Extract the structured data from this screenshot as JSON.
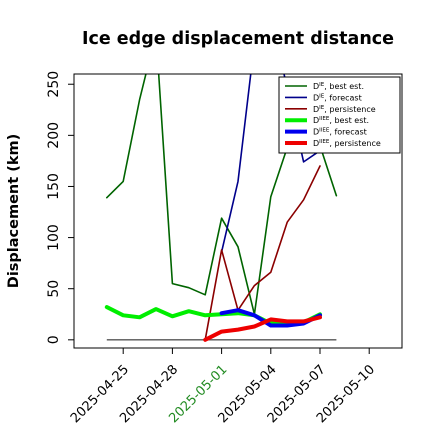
{
  "chart_data": {
    "type": "line",
    "title": "Ice edge displacement distance",
    "ylabel": "Displacement (km)",
    "xlabel": "",
    "xlim": [
      "2025-04-22",
      "2025-05-12"
    ],
    "ylim": [
      -8,
      260
    ],
    "x_ticks": [
      {
        "date": "2025-04-25",
        "label": "2025-04-25",
        "color": "#000000"
      },
      {
        "date": "2025-04-28",
        "label": "2025-04-28",
        "color": "#000000"
      },
      {
        "date": "2025-05-01",
        "label": "2025-05-01",
        "color": "#228b22"
      },
      {
        "date": "2025-05-04",
        "label": "2025-05-04",
        "color": "#000000"
      },
      {
        "date": "2025-05-07",
        "label": "2025-05-07",
        "color": "#000000"
      },
      {
        "date": "2025-05-10",
        "label": "2025-05-10",
        "color": "#000000"
      }
    ],
    "y_ticks": [
      0,
      50,
      100,
      150,
      200,
      250
    ],
    "zero_line": {
      "from": "2025-04-24",
      "to": "2025-05-08",
      "value": 0,
      "color": "#555555"
    },
    "legend_position": "top-right",
    "series": [
      {
        "name": "D^IE, best est.",
        "sup": "IE",
        "rest": ", best est.",
        "color": "#006400",
        "width": 1.6,
        "points": [
          [
            "2025-04-24",
            139
          ],
          [
            "2025-04-25",
            155
          ],
          [
            "2025-04-26",
            235
          ],
          [
            "2025-04-27",
            300
          ],
          [
            "2025-04-28",
            55
          ],
          [
            "2025-04-29",
            51
          ],
          [
            "2025-04-30",
            44
          ],
          [
            "2025-05-01",
            119
          ],
          [
            "2025-05-02",
            91
          ],
          [
            "2025-05-03",
            25
          ],
          [
            "2025-05-04",
            140
          ],
          [
            "2025-05-05",
            188
          ],
          [
            "2025-05-06",
            193
          ],
          [
            "2025-05-07",
            190
          ],
          [
            "2025-05-08",
            141
          ]
        ]
      },
      {
        "name": "D^IE, forecast",
        "sup": "IE",
        "rest": ", forecast",
        "color": "#00008b",
        "width": 1.6,
        "points": [
          [
            "2025-05-01",
            86
          ],
          [
            "2025-05-02",
            155
          ],
          [
            "2025-05-03",
            290
          ],
          [
            "2025-05-04",
            318
          ],
          [
            "2025-05-06",
            174
          ],
          [
            "2025-05-07",
            185
          ]
        ]
      },
      {
        "name": "D^IE, persistence",
        "sup": "IE",
        "rest": ", persistence",
        "color": "#8b0000",
        "width": 1.6,
        "points": [
          [
            "2025-04-30",
            0
          ],
          [
            "2025-05-01",
            88
          ],
          [
            "2025-05-02",
            29
          ],
          [
            "2025-05-03",
            53
          ],
          [
            "2025-05-04",
            66
          ],
          [
            "2025-05-05",
            115
          ],
          [
            "2025-05-06",
            137
          ],
          [
            "2025-05-07",
            170
          ]
        ]
      },
      {
        "name": "D^IIEE, best est.",
        "sup": "IIEE",
        "rest": ", best est.",
        "color": "#00ee00",
        "width": 4,
        "points": [
          [
            "2025-04-24",
            32
          ],
          [
            "2025-04-25",
            24
          ],
          [
            "2025-04-26",
            22
          ],
          [
            "2025-04-27",
            30
          ],
          [
            "2025-04-28",
            23
          ],
          [
            "2025-04-29",
            28
          ],
          [
            "2025-04-30",
            24
          ],
          [
            "2025-05-01",
            25
          ],
          [
            "2025-05-02",
            26
          ],
          [
            "2025-05-03",
            24
          ],
          [
            "2025-05-04",
            16
          ],
          [
            "2025-05-05",
            16
          ],
          [
            "2025-05-06",
            17
          ],
          [
            "2025-05-07",
            25
          ]
        ]
      },
      {
        "name": "D^IIEE, forecast",
        "sup": "IIEE",
        "rest": ", forecast",
        "color": "#0000ee",
        "width": 4,
        "points": [
          [
            "2025-05-01",
            26
          ],
          [
            "2025-05-02",
            29
          ],
          [
            "2025-05-03",
            24
          ],
          [
            "2025-05-04",
            14
          ],
          [
            "2025-05-05",
            14
          ],
          [
            "2025-05-06",
            16
          ],
          [
            "2025-05-07",
            24
          ]
        ]
      },
      {
        "name": "D^IIEE, persistence",
        "sup": "IIEE",
        "rest": ", persistence",
        "color": "#ee0000",
        "width": 4,
        "points": [
          [
            "2025-04-30",
            0
          ],
          [
            "2025-05-01",
            8
          ],
          [
            "2025-05-02",
            10
          ],
          [
            "2025-05-03",
            13
          ],
          [
            "2025-05-04",
            20
          ],
          [
            "2025-05-05",
            18
          ],
          [
            "2025-05-06",
            18
          ],
          [
            "2025-05-07",
            22
          ]
        ]
      }
    ]
  }
}
